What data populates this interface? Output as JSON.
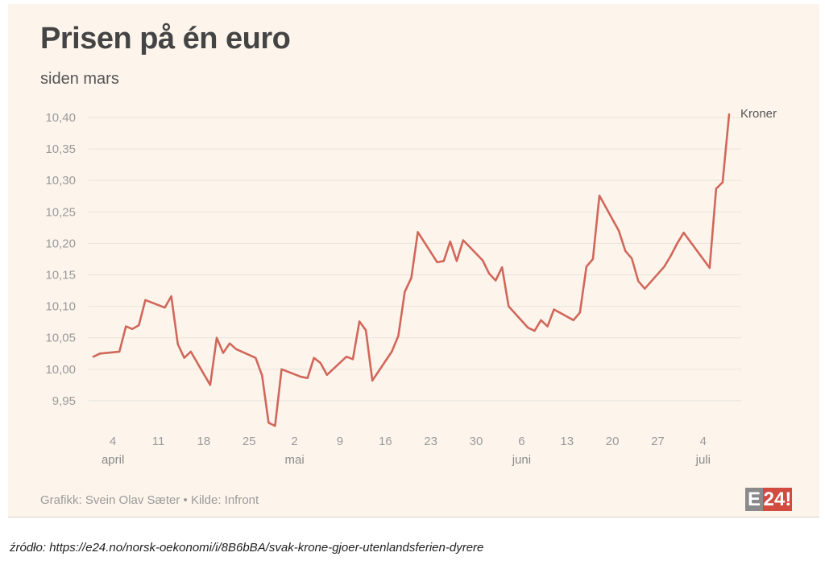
{
  "header": {
    "title": "Prisen på én euro",
    "subtitle": "siden mars"
  },
  "footer": {
    "credit": "Grafikk: Svein Olav Sæter • Kilde: Infront",
    "logo_letter": "E",
    "logo_number": "24!"
  },
  "source": {
    "prefix": "źródło:",
    "url": "https://e24.no/norsk-oekonomi/i/8B6bBA/svak-krone-gjoer-utenlandsferien-dyrere"
  },
  "colors": {
    "line": "#d1675a",
    "background": "#fdf5ec",
    "grid": "#e6e3df",
    "logo_red": "#d14b3e",
    "logo_grey": "#8a8a8a"
  },
  "chart_data": {
    "type": "line",
    "title": "Prisen på én euro",
    "subtitle": "siden mars",
    "xlabel": "",
    "ylabel": "",
    "ylim": [
      9.9,
      10.4
    ],
    "grid": true,
    "y_ticks": [
      "10,40",
      "10,35",
      "10,30",
      "10,25",
      "10,20",
      "10,15",
      "10,10",
      "10,05",
      "10,00",
      "9,95"
    ],
    "y_tick_values": [
      10.4,
      10.35,
      10.3,
      10.25,
      10.2,
      10.15,
      10.1,
      10.05,
      10.0,
      9.95
    ],
    "x_ticks": [
      {
        "date": "2020-04-04",
        "label": "4"
      },
      {
        "date": "2020-04-11",
        "label": "11"
      },
      {
        "date": "2020-04-18",
        "label": "18"
      },
      {
        "date": "2020-04-25",
        "label": "25"
      },
      {
        "date": "2020-05-02",
        "label": "2"
      },
      {
        "date": "2020-05-09",
        "label": "9"
      },
      {
        "date": "2020-05-16",
        "label": "16"
      },
      {
        "date": "2020-05-23",
        "label": "23"
      },
      {
        "date": "2020-05-30",
        "label": "30"
      },
      {
        "date": "2020-06-06",
        "label": "6"
      },
      {
        "date": "2020-06-13",
        "label": "13"
      },
      {
        "date": "2020-06-20",
        "label": "20"
      },
      {
        "date": "2020-06-27",
        "label": "27"
      },
      {
        "date": "2020-07-04",
        "label": "4"
      }
    ],
    "month_labels": [
      {
        "date": "2020-04-04",
        "label": "april"
      },
      {
        "date": "2020-05-02",
        "label": "mai"
      },
      {
        "date": "2020-06-06",
        "label": "juni"
      },
      {
        "date": "2020-07-04",
        "label": "juli"
      }
    ],
    "series": [
      {
        "name": "Kroner",
        "points": [
          [
            "2020-04-01",
            10.02
          ],
          [
            "2020-04-02",
            10.025
          ],
          [
            "2020-04-05",
            10.028
          ],
          [
            "2020-04-06",
            10.068
          ],
          [
            "2020-04-07",
            10.064
          ],
          [
            "2020-04-08",
            10.07
          ],
          [
            "2020-04-09",
            10.11
          ],
          [
            "2020-04-12",
            10.098
          ],
          [
            "2020-04-13",
            10.116
          ],
          [
            "2020-04-14",
            10.04
          ],
          [
            "2020-04-15",
            10.018
          ],
          [
            "2020-04-16",
            10.028
          ],
          [
            "2020-04-19",
            9.975
          ],
          [
            "2020-04-20",
            10.05
          ],
          [
            "2020-04-21",
            10.026
          ],
          [
            "2020-04-22",
            10.041
          ],
          [
            "2020-04-23",
            10.032
          ],
          [
            "2020-04-26",
            10.018
          ],
          [
            "2020-04-27",
            9.99
          ],
          [
            "2020-04-28",
            9.915
          ],
          [
            "2020-04-29",
            9.91
          ],
          [
            "2020-04-30",
            10.0
          ],
          [
            "2020-05-03",
            9.988
          ],
          [
            "2020-05-04",
            9.986
          ],
          [
            "2020-05-05",
            10.018
          ],
          [
            "2020-05-06",
            10.01
          ],
          [
            "2020-05-07",
            9.991
          ],
          [
            "2020-05-10",
            10.02
          ],
          [
            "2020-05-11",
            10.016
          ],
          [
            "2020-05-12",
            10.076
          ],
          [
            "2020-05-13",
            10.062
          ],
          [
            "2020-05-14",
            9.982
          ],
          [
            "2020-05-17",
            10.028
          ],
          [
            "2020-05-18",
            10.053
          ],
          [
            "2020-05-19",
            10.123
          ],
          [
            "2020-05-20",
            10.145
          ],
          [
            "2020-05-21",
            10.218
          ],
          [
            "2020-05-24",
            10.17
          ],
          [
            "2020-05-25",
            10.172
          ],
          [
            "2020-05-26",
            10.203
          ],
          [
            "2020-05-27",
            10.172
          ],
          [
            "2020-05-28",
            10.205
          ],
          [
            "2020-05-31",
            10.173
          ],
          [
            "2020-06-01",
            10.152
          ],
          [
            "2020-06-02",
            10.141
          ],
          [
            "2020-06-03",
            10.162
          ],
          [
            "2020-06-04",
            10.1
          ],
          [
            "2020-06-07",
            10.066
          ],
          [
            "2020-06-08",
            10.061
          ],
          [
            "2020-06-09",
            10.078
          ],
          [
            "2020-06-10",
            10.068
          ],
          [
            "2020-06-11",
            10.095
          ],
          [
            "2020-06-14",
            10.078
          ],
          [
            "2020-06-15",
            10.09
          ],
          [
            "2020-06-16",
            10.163
          ],
          [
            "2020-06-17",
            10.175
          ],
          [
            "2020-06-18",
            10.276
          ],
          [
            "2020-06-21",
            10.22
          ],
          [
            "2020-06-22",
            10.188
          ],
          [
            "2020-06-23",
            10.176
          ],
          [
            "2020-06-24",
            10.14
          ],
          [
            "2020-06-25",
            10.128
          ],
          [
            "2020-06-28",
            10.163
          ],
          [
            "2020-06-29",
            10.18
          ],
          [
            "2020-06-30",
            10.2
          ],
          [
            "2020-07-01",
            10.217
          ],
          [
            "2020-07-05",
            10.161
          ],
          [
            "2020-07-06",
            10.287
          ],
          [
            "2020-07-07",
            10.297
          ],
          [
            "2020-07-08",
            10.405
          ]
        ]
      }
    ]
  }
}
